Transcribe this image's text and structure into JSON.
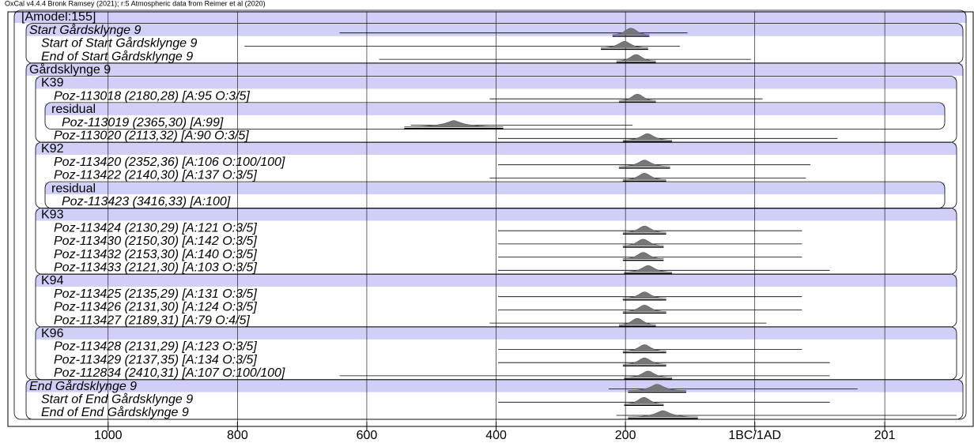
{
  "chart_data": {
    "type": "oxcal",
    "title": "OxCal v4.4.4 Bronk Ramsey (2021); r:5 Atmospheric data from Reimer et al (2020)",
    "xlim": [
      -1155,
      339
    ],
    "xticks": [
      {
        "value": -1000,
        "label": "1000"
      },
      {
        "value": -800,
        "label": "800"
      },
      {
        "value": -600,
        "label": "600"
      },
      {
        "value": -400,
        "label": "400"
      },
      {
        "value": -200,
        "label": "200"
      },
      {
        "value": 0,
        "label": "1BC/1AD"
      },
      {
        "value": 201,
        "label": "201"
      }
    ],
    "grid": true,
    "band_color": "#cfcff8",
    "line_color": "#000000",
    "rows": [
      {
        "label": "[Amodel:155]"
      },
      {
        "label": "Start Gårdsklynge 9",
        "range": [
          -642,
          -104
        ],
        "hpd": [
          -220,
          -163
        ]
      },
      {
        "label": "Start of Start Gårdsklynge 9",
        "range": [
          -789,
          -116
        ],
        "hpd": [
          -238,
          -165
        ]
      },
      {
        "label": "End of Start Gårdsklynge 9",
        "range": [
          -581,
          -6
        ],
        "hpd": [
          -214,
          -153
        ]
      },
      {
        "label": "Gårdsklynge 9"
      },
      {
        "label": "K39"
      },
      {
        "label": "Poz-113018 (2180,28) [A:95 O:3/5]",
        "range": [
          -410,
          12
        ],
        "hpd": [
          -210,
          -153
        ]
      },
      {
        "label": "residual"
      },
      {
        "label": "Poz-113019 (2365,30) [A:99]",
        "range": [
          -532,
          -189
        ],
        "hpd": [
          -542,
          -389
        ]
      },
      {
        "label": "Poz-113020 (2113,32) [A:90 O:3/5]",
        "range": [
          -397,
          128
        ],
        "hpd": [
          -204,
          -128
        ]
      },
      {
        "label": "K92"
      },
      {
        "label": "Poz-113420 (2352,36) [A:106 O:100/100]",
        "range": [
          -397,
          86
        ],
        "hpd": [
          -210,
          -131
        ]
      },
      {
        "label": "Poz-113422 (2140,30) [A:137 O:3/5]",
        "range": [
          -410,
          79
        ],
        "hpd": [
          -204,
          -137
        ]
      },
      {
        "label": "residual"
      },
      {
        "label": "Poz-113423 (3416,33) [A:100]"
      },
      {
        "label": "K93"
      },
      {
        "label": "Poz-113424 (2130,29) [A:121 O:3/5]",
        "range": [
          -397,
          73
        ],
        "hpd": [
          -204,
          -137
        ]
      },
      {
        "label": "Poz-113430 (2150,30) [A:142 O:3/5]",
        "range": [
          -397,
          73
        ],
        "hpd": [
          -204,
          -141
        ]
      },
      {
        "label": "Poz-113432 (2153,30) [A:140 O:3/5]",
        "range": [
          -397,
          73
        ],
        "hpd": [
          -204,
          -141
        ]
      },
      {
        "label": "Poz-113433 (2121,30) [A:103 O:3/5]",
        "range": [
          -397,
          116
        ],
        "hpd": [
          -202,
          -128
        ]
      },
      {
        "label": "K94"
      },
      {
        "label": "Poz-113425 (2135,29) [A:131 O:3/5]",
        "range": [
          -397,
          73
        ],
        "hpd": [
          -204,
          -137
        ]
      },
      {
        "label": "Poz-113426 (2131,30) [A:124 O:3/5]",
        "range": [
          -397,
          73
        ],
        "hpd": [
          -204,
          -137
        ]
      },
      {
        "label": "Poz-113427 (2189,31) [A:79 O:4/5]",
        "range": [
          -410,
          18
        ],
        "hpd": [
          -210,
          -153
        ]
      },
      {
        "label": "K96"
      },
      {
        "label": "Poz-113428 (2131,29) [A:123 O:3/5]",
        "range": [
          -397,
          73
        ],
        "hpd": [
          -204,
          -137
        ]
      },
      {
        "label": "Poz-113429 (2137,35) [A:134 O:3/5]",
        "range": [
          -397,
          116
        ],
        "hpd": [
          -204,
          -137
        ]
      },
      {
        "label": "Poz-112834 (2410,31) [A:107 O:100/100]",
        "range": [
          -642,
          116
        ],
        "hpd": [
          -202,
          -128
        ]
      },
      {
        "label": "End Gårdsklynge 9",
        "range": [
          -226,
          159
        ],
        "hpd": [
          -196,
          -106
        ]
      },
      {
        "label": "Start of End Gårdsklynge 9",
        "range": [
          -397,
          116
        ],
        "hpd": [
          -202,
          -141
        ]
      },
      {
        "label": "End of End Gårdsklynge 9",
        "range": [
          -214,
          312
        ],
        "hpd": [
          -196,
          -88
        ]
      }
    ]
  }
}
